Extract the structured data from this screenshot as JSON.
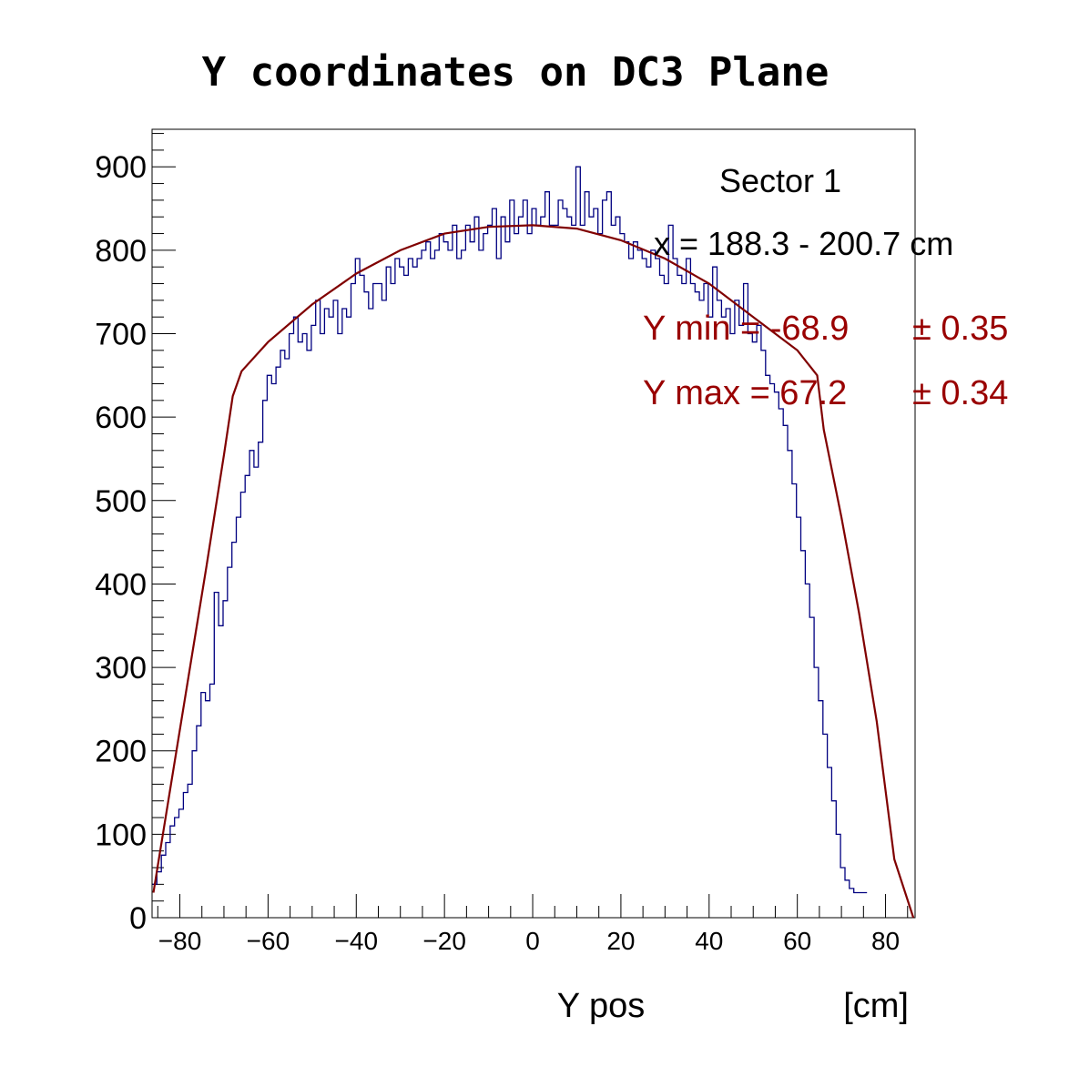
{
  "chart_data": {
    "type": "histogram",
    "title": "Y coordinates on DC3 Plane",
    "xlabel": "Y pos",
    "xunit": "[cm]",
    "ylabel": "",
    "xlim": [
      -86.3,
      86.7
    ],
    "ylim": [
      0,
      945
    ],
    "xticks": [
      -80,
      -60,
      -40,
      -20,
      0,
      20,
      40,
      60,
      80
    ],
    "xtick_labels": [
      "−80",
      "−60",
      "−40",
      "−20",
      "0",
      "20",
      "40",
      "60",
      "80"
    ],
    "yticks": [
      0,
      100,
      200,
      300,
      400,
      500,
      600,
      700,
      800,
      900
    ],
    "ytick_labels": [
      "0",
      "100",
      "200",
      "300",
      "400",
      "500",
      "600",
      "700",
      "800",
      "900"
    ],
    "histogram": {
      "x_start": -86.2,
      "bin_width": 1.0,
      "values": [
        40,
        55,
        75,
        90,
        110,
        120,
        130,
        150,
        160,
        200,
        230,
        270,
        260,
        280,
        390,
        350,
        380,
        420,
        450,
        480,
        510,
        530,
        560,
        540,
        570,
        620,
        650,
        640,
        660,
        680,
        670,
        700,
        720,
        690,
        700,
        680,
        710,
        740,
        700,
        730,
        720,
        740,
        700,
        730,
        720,
        760,
        790,
        770,
        750,
        730,
        760,
        760,
        740,
        780,
        760,
        790,
        780,
        770,
        790,
        780,
        790,
        800,
        810,
        790,
        800,
        820,
        810,
        800,
        830,
        790,
        800,
        830,
        810,
        840,
        800,
        820,
        830,
        850,
        790,
        840,
        810,
        860,
        820,
        840,
        860,
        820,
        850,
        830,
        840,
        870,
        830,
        830,
        860,
        850,
        840,
        830,
        900,
        830,
        870,
        840,
        850,
        820,
        860,
        870,
        830,
        840,
        820,
        810,
        790,
        810,
        800,
        790,
        780,
        800,
        790,
        770,
        760,
        830,
        790,
        770,
        760,
        790,
        760,
        750,
        740,
        760,
        720,
        780,
        740,
        720,
        730,
        700,
        740,
        710,
        760,
        700,
        690,
        710,
        680,
        650,
        640,
        630,
        610,
        590,
        560,
        520,
        480,
        440,
        400,
        360,
        300,
        260,
        220,
        180,
        140,
        100,
        60,
        45,
        35,
        30,
        30,
        30
      ]
    },
    "fit": {
      "name": "fit",
      "x": [
        -86.0,
        -82.0,
        -78.0,
        -74.0,
        -70.0,
        -68.0,
        -66.0,
        -60.0,
        -50.0,
        -40.0,
        -30.0,
        -20.0,
        -10.0,
        0.0,
        10.0,
        20.0,
        30.0,
        40.0,
        50.0,
        60.0,
        64.5,
        66.0,
        70.0,
        74.0,
        78.0,
        82.0,
        86.3
      ],
      "y": [
        30,
        160,
        290,
        420,
        555,
        625,
        655,
        690,
        735,
        772,
        800,
        820,
        828,
        830,
        826,
        812,
        790,
        760,
        720,
        680,
        650,
        585,
        480,
        365,
        235,
        70,
        0
      ]
    },
    "annotations": {
      "sector": "Sector 1",
      "x_range": "x = 188.3 - 200.7 cm",
      "ymin_label": "Y min = -68.9",
      "ymin_err": "± 0.35",
      "ymax_label": "Y max = 67.2",
      "ymax_err": "± 0.34"
    },
    "colors": {
      "histogram": "#000080",
      "fit": "#800000",
      "fit_text": "#990000",
      "axis": "#000000"
    }
  }
}
